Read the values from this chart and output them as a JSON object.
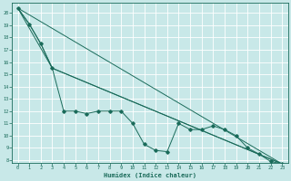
{
  "title": "",
  "xlabel": "Humidex (Indice chaleur)",
  "bg_color": "#c8e8e8",
  "grid_color": "#ffffff",
  "line_color": "#1a6b5a",
  "xlim": [
    -0.5,
    23.5
  ],
  "ylim": [
    7.8,
    20.8
  ],
  "yticks": [
    8,
    9,
    10,
    11,
    12,
    13,
    14,
    15,
    16,
    17,
    18,
    19,
    20
  ],
  "xticks": [
    0,
    1,
    2,
    3,
    4,
    5,
    6,
    7,
    8,
    9,
    10,
    11,
    12,
    13,
    14,
    15,
    16,
    17,
    18,
    19,
    20,
    21,
    22,
    23
  ],
  "line1_x": [
    0,
    1,
    2,
    3,
    4,
    5,
    6,
    7,
    8,
    9,
    10,
    11,
    12,
    13,
    14,
    15,
    16,
    17,
    18,
    19,
    20,
    21,
    22,
    23
  ],
  "line1_y": [
    20.4,
    19.1,
    17.5,
    15.5,
    12.0,
    12.0,
    11.8,
    12.0,
    12.0,
    12.0,
    11.0,
    9.3,
    8.8,
    8.7,
    11.0,
    10.5,
    10.5,
    10.8,
    10.5,
    10.0,
    9.0,
    8.5,
    7.9,
    7.7
  ],
  "line2_x": [
    0,
    1,
    2,
    3,
    23
  ],
  "line2_y": [
    20.4,
    19.1,
    17.5,
    15.5,
    7.7
  ],
  "line3_x": [
    0,
    3,
    23
  ],
  "line3_y": [
    20.4,
    15.5,
    7.7
  ],
  "line4_x": [
    0,
    23
  ],
  "line4_y": [
    20.4,
    7.7
  ]
}
